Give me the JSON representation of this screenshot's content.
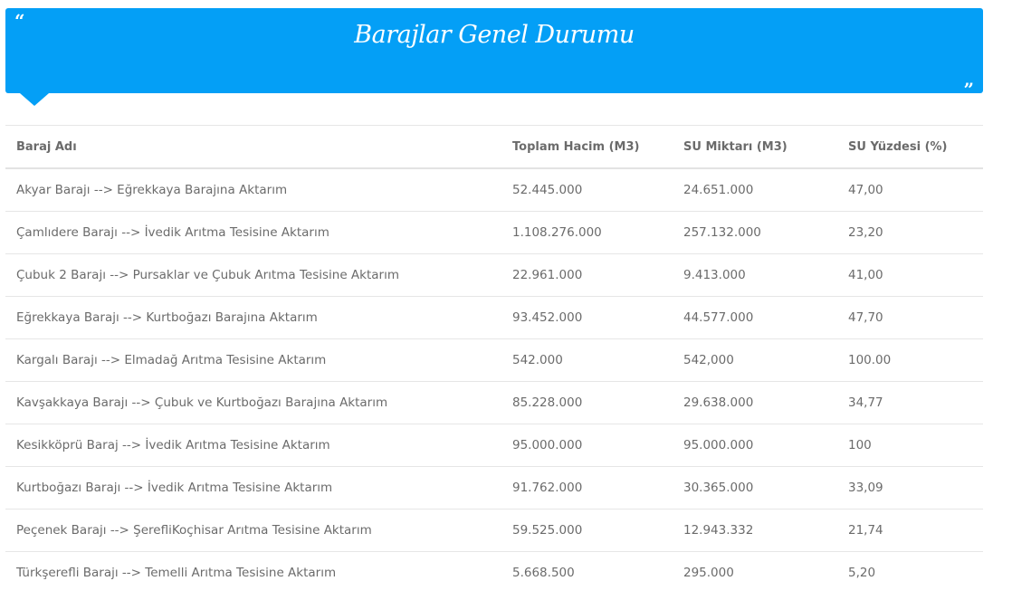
{
  "header": {
    "title": "Barajlar Genel Durumu",
    "open_quote": "“",
    "close_quote": "”",
    "color": "#049ff6"
  },
  "table": {
    "columns": [
      "Baraj Adı",
      "Toplam Hacim (M3)",
      "SU Miktarı (M3)",
      "SU Yüzdesi (%)"
    ],
    "rows": [
      [
        "Akyar Barajı --> Eğrekkaya Barajına Aktarım",
        "52.445.000",
        "24.651.000",
        "47,00"
      ],
      [
        "Çamlıdere Barajı --> İvedik Arıtma Tesisine Aktarım",
        "1.108.276.000",
        "257.132.000",
        "23,20"
      ],
      [
        "Çubuk 2 Barajı --> Pursaklar ve Çubuk Arıtma Tesisine Aktarım",
        "22.961.000",
        "9.413.000",
        "41,00"
      ],
      [
        "Eğrekkaya Barajı --> Kurtboğazı Barajına Aktarım",
        "93.452.000",
        "44.577.000",
        "47,70"
      ],
      [
        "Kargalı Barajı --> Elmadağ Arıtma Tesisine Aktarım",
        "542.000",
        "542,000",
        "100.00"
      ],
      [
        "Kavşakkaya Barajı --> Çubuk ve Kurtboğazı Barajına Aktarım",
        "85.228.000",
        "29.638.000",
        "34,77"
      ],
      [
        "Kesikköprü Baraj --> İvedik Arıtma Tesisine Aktarım",
        "95.000.000",
        "95.000.000",
        "100"
      ],
      [
        "Kurtboğazı Barajı --> İvedik Arıtma Tesisine Aktarım",
        "91.762.000",
        "30.365.000",
        "33,09"
      ],
      [
        "Peçenek Barajı --> ŞerefliKoçhisar Arıtma Tesisine Aktarım",
        "59.525.000",
        "12.943.332",
        "21,74"
      ],
      [
        "Türkşerefli Barajı --> Temelli Arıtma Tesisine Aktarım",
        "5.668.500",
        "295.000",
        "5,20"
      ]
    ]
  }
}
